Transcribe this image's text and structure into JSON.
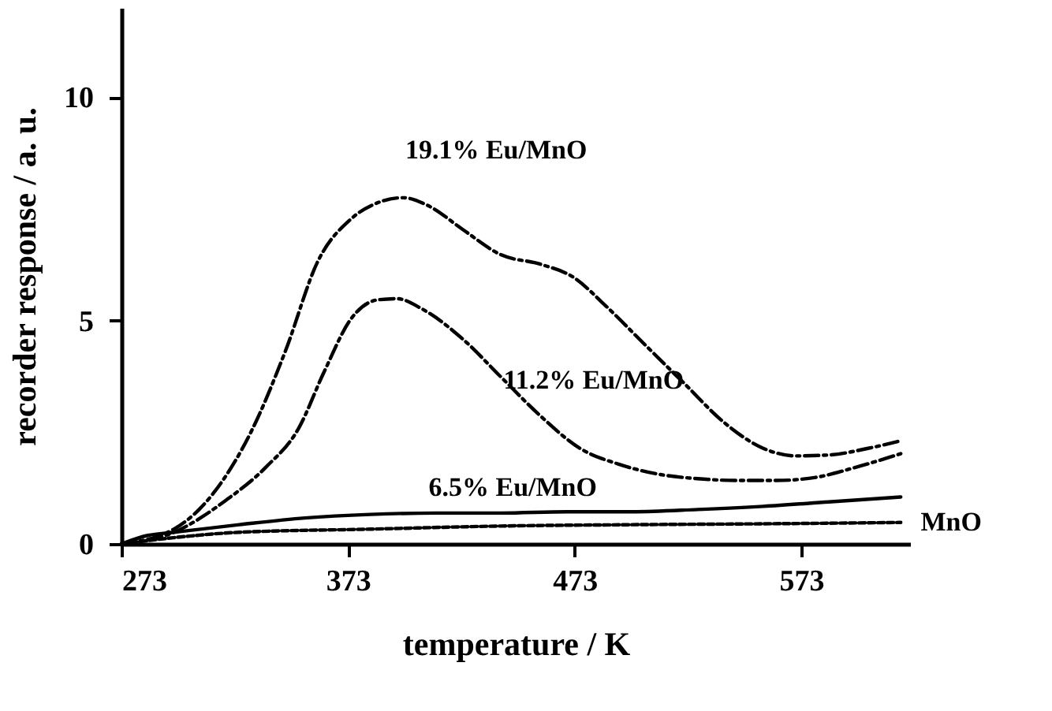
{
  "chart_data": {
    "type": "line",
    "xlabel": "temperature / K",
    "ylabel": "recorder response / a. u.",
    "xlim": [
      273,
      621
    ],
    "ylim": [
      0,
      12
    ],
    "xticks": [
      273,
      373,
      473,
      573
    ],
    "yticks": [
      0,
      5,
      10
    ],
    "grid": false,
    "legend": false,
    "marker": "none",
    "series": [
      {
        "name": "19.1% Eu/MnO",
        "color": "#000000",
        "line_style": "dashed",
        "x": [
          273,
          296.1,
          313.5,
          330.8,
          345.3,
          359.7,
          374.2,
          385.7,
          397.3,
          408.8,
          423.3,
          440.6,
          458.0,
          472.4,
          486.9,
          504.2,
          521.6,
          538.9,
          556.2,
          570.7,
          585.1,
          602.5,
          616.9
        ],
        "values": [
          0,
          0.33,
          1.13,
          2.57,
          4.31,
          6.33,
          7.27,
          7.63,
          7.75,
          7.56,
          7.05,
          6.47,
          6.26,
          5.97,
          5.32,
          4.45,
          3.58,
          2.72,
          2.14,
          1.97,
          1.99,
          2.14,
          2.31
        ]
      },
      {
        "name": "11.2% Eu/MnO",
        "color": "#000000",
        "line_style": "dashed",
        "x": [
          273,
          296.1,
          319.2,
          336.6,
          351.0,
          362.6,
          374.2,
          385.7,
          394.4,
          406.0,
          423.3,
          440.6,
          458.0,
          475.3,
          492.7,
          510.0,
          527.3,
          544.7,
          562.0,
          579.4,
          596.7,
          616.9
        ],
        "values": [
          0,
          0.26,
          0.98,
          1.71,
          2.57,
          3.87,
          5.03,
          5.46,
          5.49,
          5.25,
          4.6,
          3.73,
          2.86,
          2.14,
          1.78,
          1.56,
          1.46,
          1.42,
          1.42,
          1.49,
          1.71,
          2.02
        ]
      },
      {
        "name": "6.5% Eu/MnO",
        "color": "#000000",
        "line_style": "solid",
        "x": [
          273,
          284.6,
          296.1,
          325.0,
          353.9,
          382.8,
          411.7,
          440.6,
          469.5,
          498.4,
          527.3,
          556.2,
          585.1,
          616.9
        ],
        "values": [
          0,
          0.19,
          0.26,
          0.43,
          0.58,
          0.66,
          0.69,
          0.69,
          0.72,
          0.72,
          0.77,
          0.84,
          0.94,
          1.05
        ]
      },
      {
        "name": "MnO",
        "color": "#000000",
        "line_style": "dotted",
        "x": [
          273,
          296.1,
          325.0,
          382.8,
          440.6,
          498.4,
          556.2,
          616.9
        ],
        "values": [
          0,
          0.14,
          0.26,
          0.33,
          0.4,
          0.43,
          0.45,
          0.48
        ]
      }
    ]
  }
}
